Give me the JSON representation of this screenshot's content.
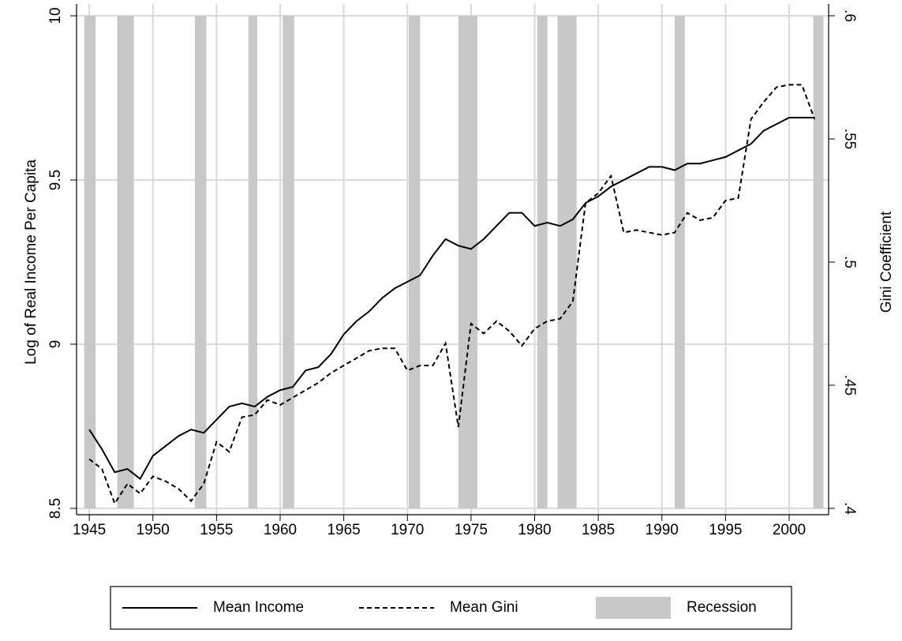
{
  "chart_data": {
    "type": "line",
    "x": [
      1945,
      1946,
      1947,
      1948,
      1949,
      1950,
      1951,
      1952,
      1953,
      1954,
      1955,
      1956,
      1957,
      1958,
      1959,
      1960,
      1961,
      1962,
      1963,
      1964,
      1965,
      1966,
      1967,
      1968,
      1969,
      1970,
      1971,
      1972,
      1973,
      1974,
      1975,
      1976,
      1977,
      1978,
      1979,
      1980,
      1981,
      1982,
      1983,
      1984,
      1985,
      1986,
      1987,
      1988,
      1989,
      1990,
      1991,
      1992,
      1993,
      1994,
      1995,
      1996,
      1997,
      1998,
      1999,
      2000,
      2001,
      2002
    ],
    "xlim": [
      1944,
      2003.1
    ],
    "xticks": [
      1945,
      1950,
      1955,
      1960,
      1965,
      1970,
      1975,
      1980,
      1985,
      1990,
      1995,
      2000
    ],
    "ylim": [
      8.5,
      10
    ],
    "yticks": [
      8.5,
      9,
      9.5,
      10
    ],
    "y2lim": [
      0.4,
      0.6
    ],
    "y2ticks": [
      {
        "value": 0.4,
        "label": ".4"
      },
      {
        "value": 0.45,
        "label": ".45"
      },
      {
        "value": 0.5,
        "label": ".5"
      },
      {
        "value": 0.55,
        "label": ".55"
      },
      {
        "value": 0.6,
        "label": ".6"
      }
    ],
    "ylabel": "Log of Real Income Per Capita",
    "y2label": "Gini Coefficient",
    "grid": true,
    "series": [
      {
        "name": "Mean Income",
        "color": "#000000",
        "dashed": false,
        "values": [
          8.74,
          8.68,
          8.61,
          8.62,
          8.59,
          8.66,
          8.69,
          8.72,
          8.74,
          8.73,
          8.77,
          8.81,
          8.82,
          8.81,
          8.84,
          8.86,
          8.87,
          8.92,
          8.93,
          8.97,
          9.03,
          9.07,
          9.1,
          9.14,
          9.17,
          9.19,
          9.21,
          9.27,
          9.32,
          9.3,
          9.29,
          9.32,
          9.36,
          9.4,
          9.4,
          9.36,
          9.37,
          9.36,
          9.38,
          9.43,
          9.45,
          9.48,
          9.5,
          9.52,
          9.54,
          9.54,
          9.53,
          9.55,
          9.55,
          9.56,
          9.57,
          9.59,
          9.61,
          9.65,
          9.67,
          9.69,
          9.69,
          9.69
        ]
      },
      {
        "name": "Mean Gini",
        "color": "#000000",
        "dashed": true,
        "axis": "y2",
        "values": [
          0.42,
          0.416,
          0.402,
          0.41,
          0.406,
          0.413,
          0.411,
          0.408,
          0.403,
          0.41,
          0.427,
          0.423,
          0.437,
          0.438,
          0.444,
          0.442,
          0.445,
          0.448,
          0.451,
          0.455,
          0.458,
          0.461,
          0.464,
          0.465,
          0.465,
          0.456,
          0.458,
          0.458,
          0.467,
          0.433,
          0.475,
          0.471,
          0.476,
          0.472,
          0.466,
          0.473,
          0.476,
          0.477,
          0.484,
          0.524,
          0.528,
          0.535,
          0.512,
          0.513,
          0.512,
          0.511,
          0.512,
          0.52,
          0.517,
          0.518,
          0.525,
          0.526,
          0.558,
          0.565,
          0.571,
          0.572,
          0.572,
          0.558
        ]
      }
    ],
    "recession": {
      "name": "Recession",
      "color": "#c8c8c8",
      "spans": [
        [
          1944.6,
          1945.5
        ],
        [
          1947.2,
          1948.5
        ],
        [
          1953.3,
          1954.2
        ],
        [
          1957.5,
          1958.2
        ],
        [
          1960.2,
          1961.1
        ],
        [
          1970.1,
          1971.0
        ],
        [
          1974.0,
          1975.5
        ],
        [
          1980.2,
          1981.0
        ],
        [
          1981.8,
          1983.3
        ],
        [
          1991.0,
          1991.8
        ],
        [
          2001.9,
          2002.7
        ]
      ]
    }
  }
}
